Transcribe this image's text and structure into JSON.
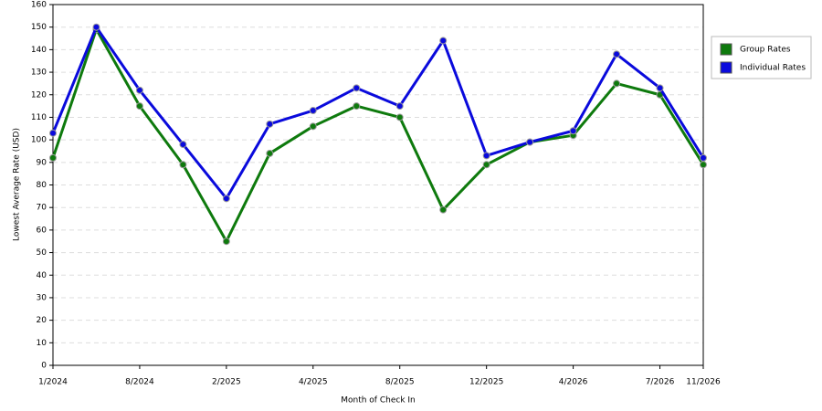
{
  "chart_data": {
    "type": "line",
    "x_label": "Month of Check In",
    "y_label": "Lowest Average Rate (USD)",
    "categories": [
      "1/2024",
      null,
      "8/2024",
      null,
      "2/2025",
      null,
      "4/2025",
      null,
      "8/2025",
      null,
      "12/2025",
      null,
      "4/2026",
      null,
      "7/2026",
      "11/2026"
    ],
    "series": [
      {
        "name": "Group Rates",
        "color": "#0e7a0d",
        "values": [
          92,
          149,
          115,
          89,
          55,
          94,
          106,
          115,
          110,
          69,
          89,
          99,
          102,
          125,
          120,
          89
        ]
      },
      {
        "name": "Individual Rates",
        "color": "#0a0adc",
        "values": [
          103,
          150,
          122,
          98,
          74,
          107,
          113,
          123,
          115,
          144,
          93,
          99,
          104,
          138,
          123,
          92
        ]
      }
    ],
    "ylim": [
      0,
      160
    ],
    "yticks": [
      0,
      10,
      20,
      30,
      40,
      50,
      60,
      70,
      80,
      90,
      100,
      110,
      120,
      130,
      140,
      150,
      160
    ],
    "grid": true,
    "legend": "right"
  }
}
